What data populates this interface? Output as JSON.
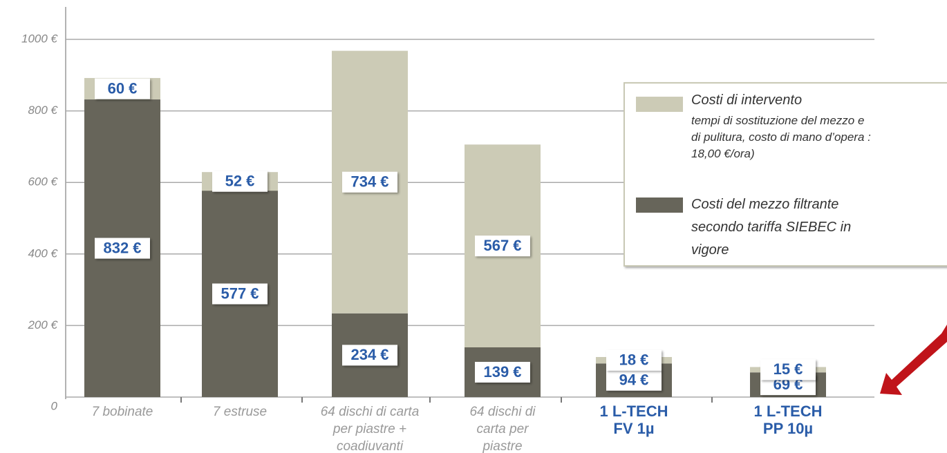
{
  "chart_data": {
    "type": "stacked_bar",
    "categories": [
      "7 bobinate",
      "7 estruse",
      "64 dischi di carta\nper piastre +\ncoadiuvanti",
      "64 dischi di\ncarta per\npiastre",
      "1 L-TECH\nFV 1µ",
      "1 L-TECH\nPP 10µ"
    ],
    "category_label_colors": [
      "#999999",
      "#999999",
      "#999999",
      "#999999",
      "#2a5ca8",
      "#2a5ca8"
    ],
    "series": [
      {
        "name": "Costi del mezzo filtrante\nsecondo tariffa  SIEBEC in\nvigore",
        "color": "#67655a",
        "values": [
          832,
          577,
          234,
          139,
          94,
          69
        ],
        "value_labels": [
          "832 €",
          "577 €",
          "234 €",
          "139 €",
          "94 €",
          "69 €"
        ]
      },
      {
        "name": "Costi di intervento",
        "description": "tempi di sostituzione del mezzo e\ndi pulitura, costo di mano d’opera :\n18,00 €/ora)",
        "color": "#cccbb6",
        "values": [
          60,
          52,
          734,
          567,
          18,
          15
        ],
        "value_labels": [
          "60 €",
          "52 €",
          "734 €",
          "567 €",
          "18 €",
          "15 €"
        ]
      }
    ],
    "ylim": [
      0,
      1000
    ],
    "yticks": [
      0,
      {
        "value": 200,
        "label": "200 €"
      },
      {
        "value": 400,
        "label": "400 €"
      },
      {
        "value": 600,
        "label": "600 €"
      },
      {
        "value": 800,
        "label": "800 €"
      },
      {
        "value": 1000,
        "label": "1000 €"
      }
    ],
    "grid": true
  }
}
